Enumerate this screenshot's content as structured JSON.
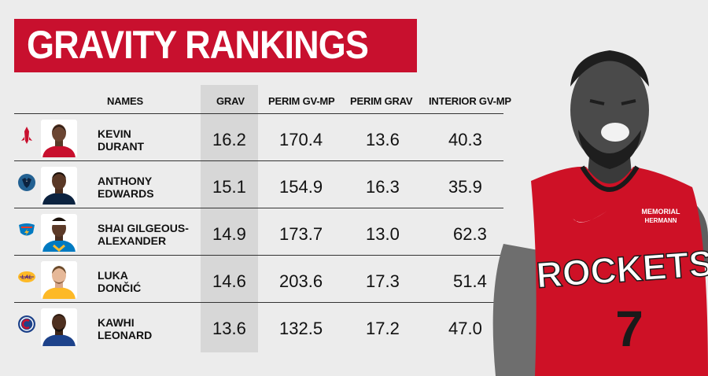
{
  "title": "GRAVITY RANKINGS",
  "headers": {
    "names": "NAMES",
    "grav": "GRAV",
    "perim_gv_mp": "PERIM GV-MP",
    "perim_grav": "PERIM GRAV",
    "interior_gv_mp": "INTERIOR GV-MP"
  },
  "players": [
    {
      "first": "KEVIN",
      "last": "DURANT",
      "grav": "16.2",
      "perim_gv_mp": "170.4",
      "perim_grav": "13.6",
      "interior_gv_mp": "40.3",
      "team_logo": "rockets-logo",
      "jersey_color": "#c8102e"
    },
    {
      "first": "ANTHONY",
      "last": "EDWARDS",
      "grav": "15.1",
      "perim_gv_mp": "154.9",
      "perim_grav": "16.3",
      "interior_gv_mp": "35.9",
      "team_logo": "timberwolves-logo",
      "jersey_color": "#0c2340"
    },
    {
      "first": "SHAI GILGEOUS-",
      "last": "ALEXANDER",
      "grav": "14.9",
      "perim_gv_mp": "173.7",
      "perim_grav": "13.0",
      "interior_gv_mp": "62.3",
      "team_logo": "thunder-logo",
      "jersey_color": "#007ac1"
    },
    {
      "first": "LUKA",
      "last": "DONČIĆ",
      "grav": "14.6",
      "perim_gv_mp": "203.6",
      "perim_grav": "17.3",
      "interior_gv_mp": "51.4",
      "team_logo": "lakers-logo",
      "jersey_color": "#fdb927"
    },
    {
      "first": "KAWHI",
      "last": "LEONARD",
      "grav": "13.6",
      "perim_gv_mp": "132.5",
      "perim_grav": "17.2",
      "interior_gv_mp": "47.0",
      "team_logo": "clippers-logo",
      "jersey_color": "#1d428a"
    }
  ],
  "photo": {
    "jersey_text": "ROCKETS",
    "jersey_number": "7",
    "sponsor_top": "MEMORIAL",
    "sponsor_bottom": "HERMANN",
    "jersey_color": "#ce1126"
  }
}
